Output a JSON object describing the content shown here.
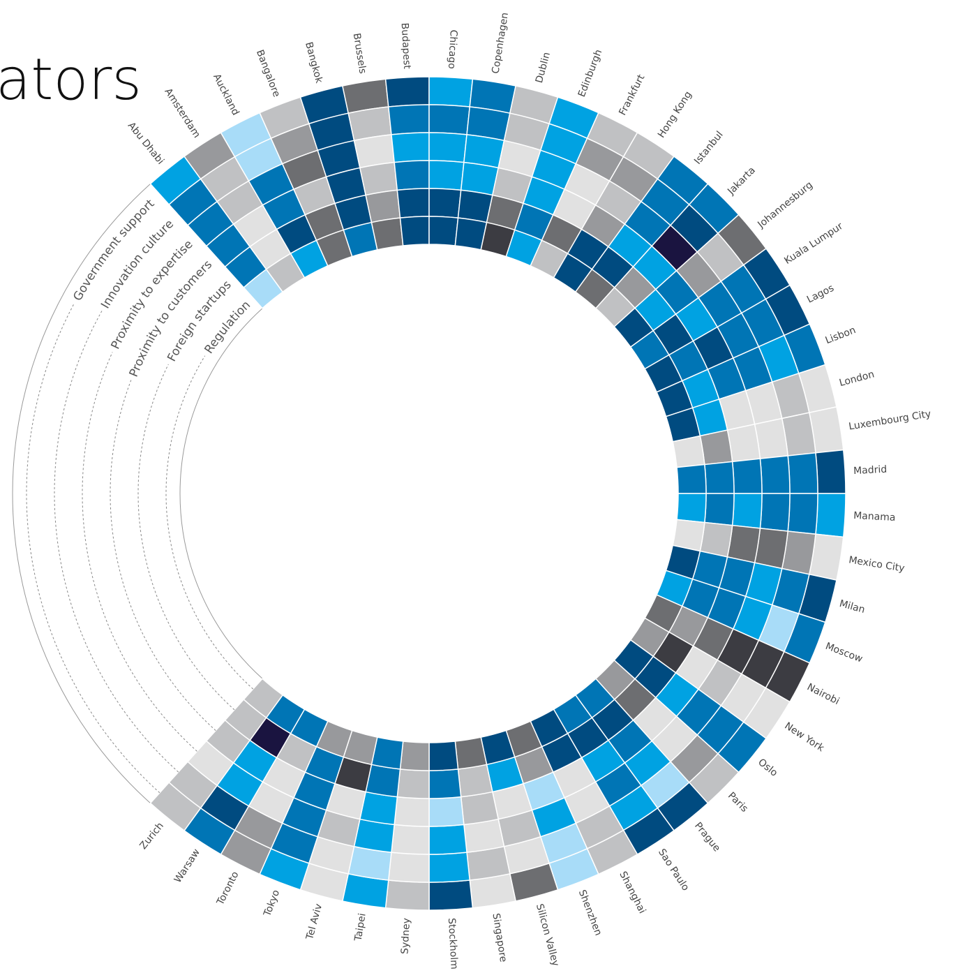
{
  "chart_data": {
    "type": "radial_heatmap",
    "title": "ators",
    "colors": [
      "#1a1440",
      "#004b80",
      "#0075b5",
      "#00a2e2",
      "#a8dcf8",
      "#e1e1e1",
      "#c0c1c3",
      "#98999c",
      "#6d6e71",
      "#3c3c42"
    ],
    "categories": [
      "Abu Dhabi",
      "Amsterdam",
      "Auckland",
      "Bangalore",
      "Bangkok",
      "Brussels",
      "Budapest",
      "Chicago",
      "Copenhagen",
      "Dublin",
      "Edinburgh",
      "Frankfurt",
      "Hong Kong",
      "Istanbul",
      "Jakarta",
      "Johannesburg",
      "Kuala Lumpur",
      "Lagos",
      "Lisbon",
      "London",
      "Luxembourg City",
      "Madrid",
      "Manama",
      "Mexico City",
      "Milan",
      "Moscow",
      "Nairobi",
      "New York",
      "Oslo",
      "Paris",
      "Prague",
      "Sao Paulo",
      "Shanghai",
      "Shenzhen",
      "Silicon Valley",
      "Singapore",
      "Stockholm",
      "Sydney",
      "Taipei",
      "Tel Aviv",
      "Tokyo",
      "Toronto",
      "Warsaw",
      "Zurich"
    ],
    "series": [
      {
        "name": "Government support",
        "values": [
          4,
          8,
          5,
          7,
          2,
          9,
          2,
          4,
          3,
          7,
          4,
          7,
          7,
          3,
          3,
          9,
          2,
          2,
          3,
          6,
          6,
          2,
          4,
          6,
          2,
          3,
          10,
          6,
          3,
          7,
          2,
          2,
          7,
          5,
          9,
          6,
          2,
          7,
          4,
          6,
          4,
          8,
          3,
          7
        ]
      },
      {
        "name": "Innovation culture",
        "values": [
          3,
          7,
          5,
          8,
          2,
          7,
          3,
          3,
          3,
          7,
          4,
          8,
          8,
          3,
          2,
          7,
          3,
          3,
          4,
          7,
          7,
          3,
          3,
          8,
          3,
          5,
          10,
          6,
          3,
          8,
          5,
          4,
          7,
          5,
          6,
          7,
          4,
          6,
          5,
          6,
          3,
          8,
          2,
          7
        ]
      },
      {
        "name": "Proximity to expertise",
        "values": [
          3,
          7,
          3,
          9,
          2,
          6,
          4,
          4,
          4,
          6,
          4,
          6,
          7,
          3,
          1,
          8,
          3,
          3,
          3,
          6,
          6,
          3,
          3,
          9,
          4,
          4,
          10,
          7,
          3,
          6,
          4,
          3,
          6,
          4,
          7,
          6,
          4,
          6,
          4,
          7,
          3,
          6,
          4,
          6
        ]
      },
      {
        "name": "Proximity to customers",
        "values": [
          3,
          6,
          3,
          7,
          2,
          7,
          3,
          4,
          4,
          7,
          4,
          6,
          8,
          4,
          4,
          3,
          4,
          2,
          3,
          6,
          6,
          3,
          4,
          9,
          3,
          3,
          9,
          6,
          4,
          6,
          3,
          4,
          6,
          5,
          6,
          7,
          5,
          6,
          4,
          6,
          3,
          6,
          4,
          7
        ]
      },
      {
        "name": "Foreign startups",
        "values": [
          3,
          6,
          2,
          9,
          2,
          8,
          2,
          2,
          2,
          9,
          3,
          9,
          2,
          2,
          8,
          4,
          2,
          3,
          4,
          4,
          8,
          3,
          3,
          7,
          3,
          3,
          8,
          10,
          2,
          9,
          2,
          2,
          2,
          8,
          4,
          7,
          3,
          7,
          3,
          10,
          3,
          7,
          1,
          7
        ]
      },
      {
        "name": "Regulation",
        "values": [
          5,
          7,
          4,
          9,
          3,
          9,
          2,
          2,
          2,
          10,
          4,
          7,
          2,
          9,
          7,
          2,
          3,
          2,
          2,
          2,
          6,
          3,
          4,
          6,
          2,
          4,
          9,
          8,
          2,
          8,
          3,
          3,
          2,
          9,
          2,
          9,
          2,
          8,
          3,
          8,
          8,
          3,
          3,
          7
        ]
      }
    ]
  }
}
